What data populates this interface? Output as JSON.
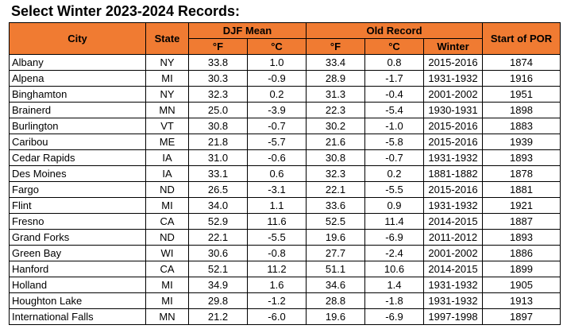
{
  "title": "Select Winter 2023-2024 Records:",
  "headers": {
    "city": "City",
    "state": "State",
    "djf_mean": "DJF Mean",
    "old_record": "Old Record",
    "start_of_por": "Start of POR",
    "f": "°F",
    "c": "°C",
    "winter": "Winter"
  },
  "rows": [
    {
      "city": "Albany",
      "state": "NY",
      "mean_f": "33.8",
      "mean_c": "1.0",
      "old_f": "33.4",
      "old_c": "0.8",
      "winter": "2015-2016",
      "por": "1874"
    },
    {
      "city": "Alpena",
      "state": "MI",
      "mean_f": "30.3",
      "mean_c": "-0.9",
      "old_f": "28.9",
      "old_c": "-1.7",
      "winter": "1931-1932",
      "por": "1916"
    },
    {
      "city": "Binghamton",
      "state": "NY",
      "mean_f": "32.3",
      "mean_c": "0.2",
      "old_f": "31.3",
      "old_c": "-0.4",
      "winter": "2001-2002",
      "por": "1951"
    },
    {
      "city": "Brainerd",
      "state": "MN",
      "mean_f": "25.0",
      "mean_c": "-3.9",
      "old_f": "22.3",
      "old_c": "-5.4",
      "winter": "1930-1931",
      "por": "1898"
    },
    {
      "city": "Burlington",
      "state": "VT",
      "mean_f": "30.8",
      "mean_c": "-0.7",
      "old_f": "30.2",
      "old_c": "-1.0",
      "winter": "2015-2016",
      "por": "1883"
    },
    {
      "city": "Caribou",
      "state": "ME",
      "mean_f": "21.8",
      "mean_c": "-5.7",
      "old_f": "21.6",
      "old_c": "-5.8",
      "winter": "2015-2016",
      "por": "1939"
    },
    {
      "city": "Cedar Rapids",
      "state": "IA",
      "mean_f": "31.0",
      "mean_c": "-0.6",
      "old_f": "30.8",
      "old_c": "-0.7",
      "winter": "1931-1932",
      "por": "1893"
    },
    {
      "city": "Des Moines",
      "state": "IA",
      "mean_f": "33.1",
      "mean_c": "0.6",
      "old_f": "32.3",
      "old_c": "0.2",
      "winter": "1881-1882",
      "por": "1878"
    },
    {
      "city": "Fargo",
      "state": "ND",
      "mean_f": "26.5",
      "mean_c": "-3.1",
      "old_f": "22.1",
      "old_c": "-5.5",
      "winter": "2015-2016",
      "por": "1881"
    },
    {
      "city": "Flint",
      "state": "MI",
      "mean_f": "34.0",
      "mean_c": "1.1",
      "old_f": "33.6",
      "old_c": "0.9",
      "winter": "1931-1932",
      "por": "1921"
    },
    {
      "city": "Fresno",
      "state": "CA",
      "mean_f": "52.9",
      "mean_c": "11.6",
      "old_f": "52.5",
      "old_c": "11.4",
      "winter": "2014-2015",
      "por": "1887"
    },
    {
      "city": "Grand Forks",
      "state": "ND",
      "mean_f": "22.1",
      "mean_c": "-5.5",
      "old_f": "19.6",
      "old_c": "-6.9",
      "winter": "2011-2012",
      "por": "1893"
    },
    {
      "city": "Green Bay",
      "state": "WI",
      "mean_f": "30.6",
      "mean_c": "-0.8",
      "old_f": "27.7",
      "old_c": "-2.4",
      "winter": "2001-2002",
      "por": "1886"
    },
    {
      "city": "Hanford",
      "state": "CA",
      "mean_f": "52.1",
      "mean_c": "11.2",
      "old_f": "51.1",
      "old_c": "10.6",
      "winter": "2014-2015",
      "por": "1899"
    },
    {
      "city": "Holland",
      "state": "MI",
      "mean_f": "34.9",
      "mean_c": "1.6",
      "old_f": "34.6",
      "old_c": "1.4",
      "winter": "1931-1932",
      "por": "1905"
    },
    {
      "city": "Houghton Lake",
      "state": "MI",
      "mean_f": "29.8",
      "mean_c": "-1.2",
      "old_f": "28.8",
      "old_c": "-1.8",
      "winter": "1931-1932",
      "por": "1913"
    },
    {
      "city": "International Falls",
      "state": "MN",
      "mean_f": "21.2",
      "mean_c": "-6.0",
      "old_f": "19.6",
      "old_c": "-6.9",
      "winter": "1997-1998",
      "por": "1897"
    }
  ],
  "colors": {
    "header_bg": "#f07b32",
    "border": "#000000"
  }
}
